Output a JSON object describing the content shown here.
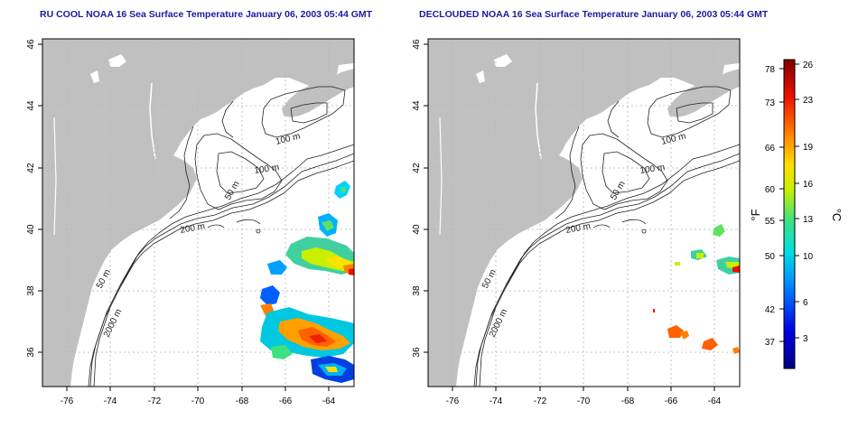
{
  "panels": [
    {
      "title": "RU COOL NOAA 16 Sea Surface Temperature January 06, 2003 05:44 GMT",
      "variant": "raw",
      "x_ticks": [
        "-76",
        "-74",
        "-72",
        "-70",
        "-68",
        "-66",
        "-64"
      ],
      "y_ticks": [
        "36",
        "38",
        "40",
        "42",
        "44",
        "46"
      ],
      "contour_labels": [
        "100 m",
        "100 m",
        "50 m",
        "200 m",
        "50 m",
        "2000 m"
      ]
    },
    {
      "title": "DECLOUDED NOAA 16 Sea Surface Temperature January 06, 2003 05:44 GMT",
      "variant": "declouded",
      "x_ticks": [
        "-76",
        "-74",
        "-72",
        "-70",
        "-68",
        "-66",
        "-64"
      ],
      "y_ticks": [
        "36",
        "38",
        "40",
        "42",
        "44",
        "46"
      ],
      "contour_labels": [
        "100 m",
        "100 m",
        "50 m",
        "200 m",
        "50 m",
        "2000 m"
      ]
    }
  ],
  "colorbar": {
    "fahrenheit_label": "°F",
    "celsius_label": "°C",
    "fahrenheit_ticks": [
      "78",
      "73",
      "66",
      "60",
      "55",
      "50",
      "42",
      "37"
    ],
    "celsius_ticks": [
      "26",
      "23",
      "19",
      "16",
      "13",
      "10",
      "6",
      "3"
    ]
  },
  "colors": {
    "land": "#c0c0c0",
    "ocean": "#ffffff",
    "title": "#1a1aa0",
    "contour": "#222222",
    "grid": "#b4b4b4"
  }
}
